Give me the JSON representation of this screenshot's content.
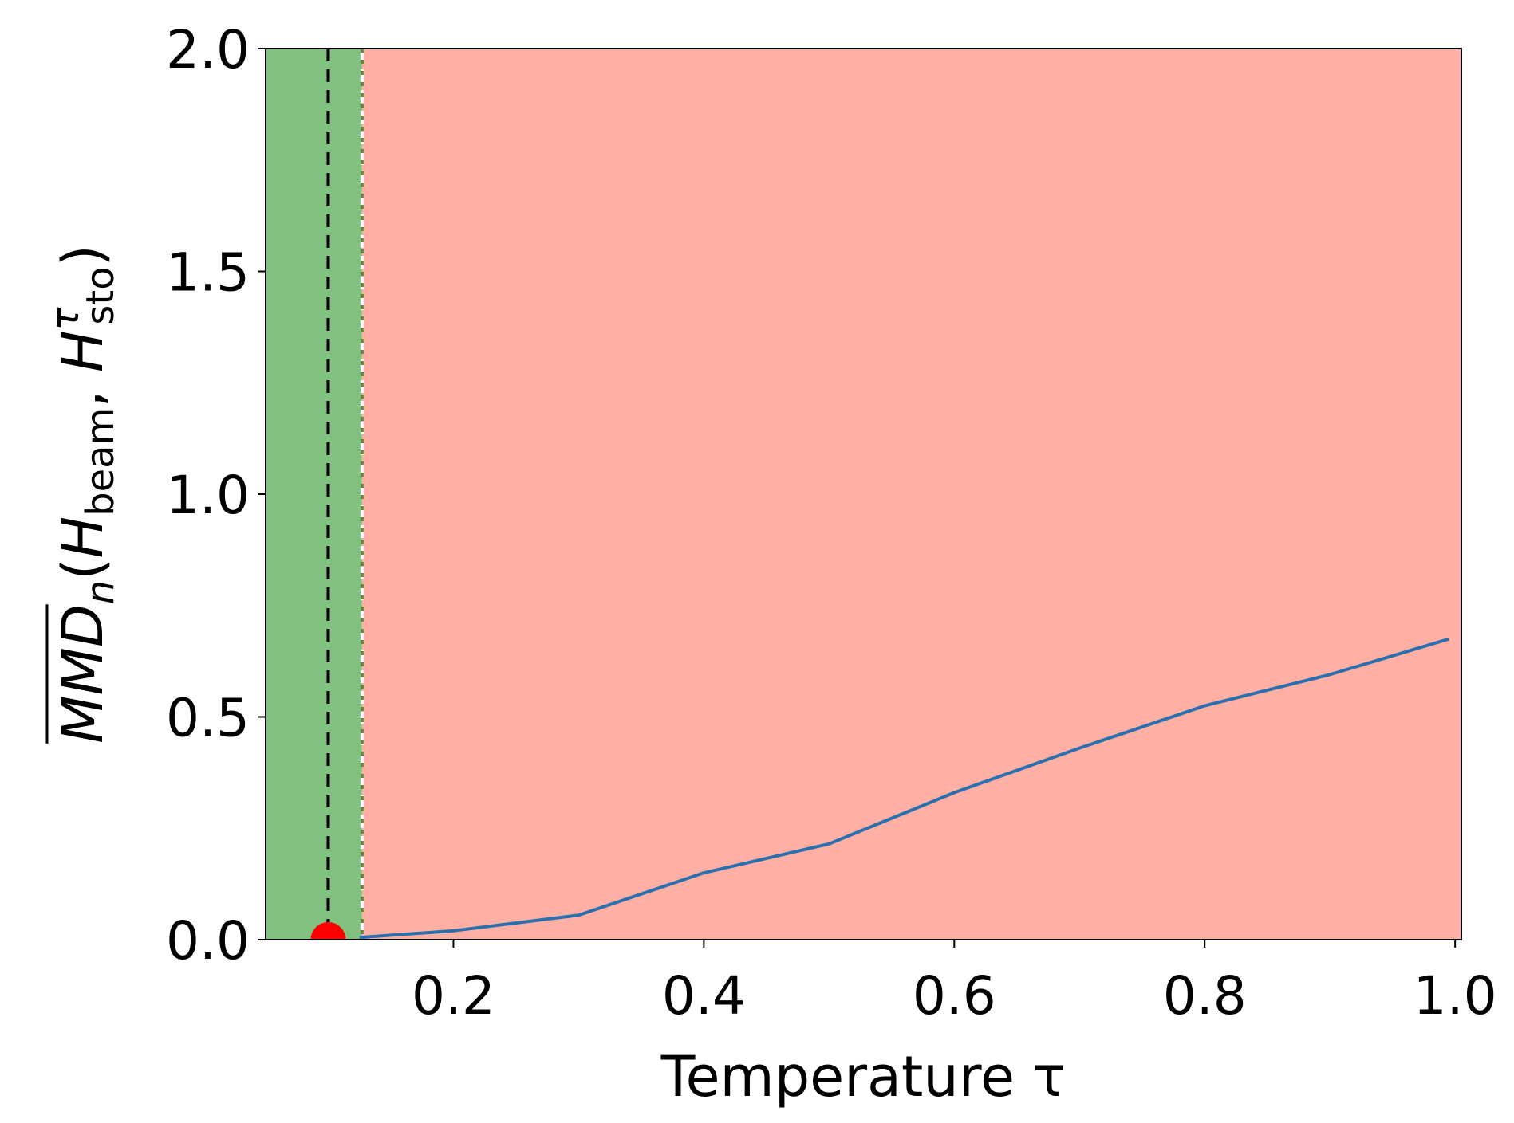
{
  "chart_data": {
    "type": "line",
    "xlabel": "Temperature τ",
    "ylabel": {
      "base": "MMD",
      "sub_n": "n",
      "open": "(",
      "H1": "H",
      "sub1": "beam",
      "comma": ", ",
      "H2": "H",
      "sup2": "τ",
      "sub2": "sto",
      "close": ")"
    },
    "xlim": [
      0.05,
      1.005
    ],
    "ylim": [
      0.0,
      2.0
    ],
    "xticks": [
      "0.2",
      "0.4",
      "0.6",
      "0.8",
      "1.0"
    ],
    "xtick_values": [
      0.2,
      0.4,
      0.6,
      0.8,
      1.0
    ],
    "yticks": [
      "0.0",
      "0.5",
      "1.0",
      "1.5",
      "2.0"
    ],
    "ytick_values": [
      0.0,
      0.5,
      1.0,
      1.5,
      2.0
    ],
    "grid": false,
    "legend": "none",
    "series": [
      {
        "color": "#2a6fae",
        "x": [
          0.125,
          0.2,
          0.3,
          0.4,
          0.5,
          0.6,
          0.7,
          0.8,
          0.9,
          0.995
        ],
        "y": [
          0.005,
          0.02,
          0.055,
          0.15,
          0.215,
          0.33,
          0.43,
          0.525,
          0.595,
          0.675
        ]
      }
    ],
    "regions": [
      {
        "from": 0.05,
        "to": 0.127,
        "color": "#80c17f"
      },
      {
        "from": 0.127,
        "to": 1.005,
        "color": "#ffafa3"
      }
    ],
    "vlines": [
      {
        "x": 0.1,
        "style": "dashed",
        "color": "#000000"
      },
      {
        "x": 0.127,
        "style": "dashed",
        "color": "#ffffff"
      },
      {
        "x": 0.127,
        "style": "dotted",
        "color": "#5a8a40"
      }
    ],
    "marker": {
      "x": 0.1,
      "y": 0.0,
      "color": "#ff0000"
    }
  }
}
